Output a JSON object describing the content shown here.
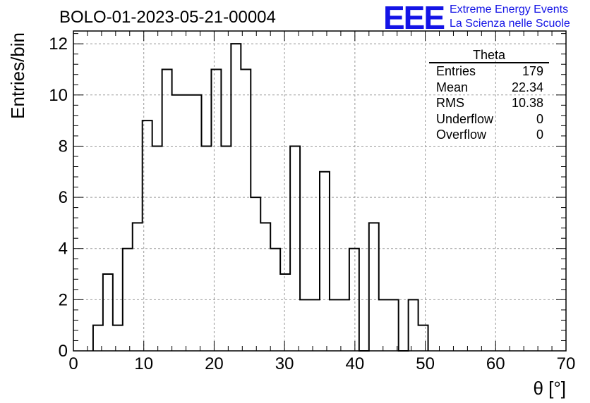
{
  "header": {
    "run_title": "BOLO-01-2023-05-21-00004"
  },
  "logo": {
    "mark": "EEE",
    "line1": "Extreme Energy Events",
    "line2": "La Scienza nelle Scuole",
    "color": "#1414e6"
  },
  "stats": {
    "title": "Theta",
    "rows": [
      {
        "label": "Entries",
        "value": "179"
      },
      {
        "label": "Mean",
        "value": "22.34"
      },
      {
        "label": "RMS",
        "value": "10.38"
      },
      {
        "label": "Underflow",
        "value": "0"
      },
      {
        "label": "Overflow",
        "value": "0"
      }
    ]
  },
  "chart_data": {
    "type": "histogram",
    "xlabel": "θ [°]",
    "ylabel": "Entries/bin",
    "xlim": [
      0,
      70
    ],
    "ylim": [
      0,
      12.5
    ],
    "x_ticks": [
      0,
      10,
      20,
      30,
      40,
      50,
      60,
      70
    ],
    "y_ticks": [
      0,
      2,
      4,
      6,
      8,
      10,
      12
    ],
    "bin_width": 1.4,
    "bin_edges_start": 2.8,
    "counts": [
      1,
      3,
      1,
      4,
      5,
      9,
      8,
      11,
      10,
      10,
      10,
      8,
      11,
      8,
      12,
      11,
      6,
      5,
      4,
      3,
      8,
      2,
      2,
      7,
      2,
      2,
      4,
      0,
      5,
      2,
      2,
      0,
      2,
      1
    ],
    "grid": true,
    "line_color": "#000000"
  }
}
